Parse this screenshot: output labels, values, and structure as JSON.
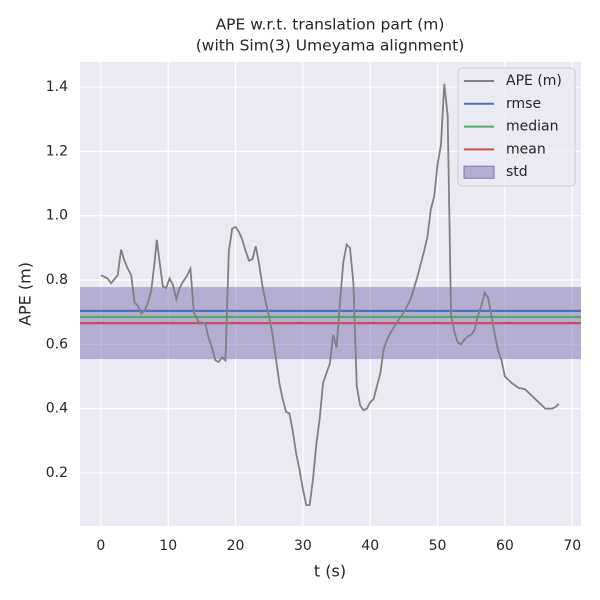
{
  "chart_data": {
    "type": "line",
    "title": [
      "APE w.r.t. translation part (m)",
      "(with Sim(3) Umeyama alignment)"
    ],
    "xlabel": "t (s)",
    "ylabel": "APE (m)",
    "xlim": [
      -3.1,
      71.3
    ],
    "ylim": [
      0.035,
      1.478
    ],
    "xticks": [
      0,
      10,
      20,
      30,
      40,
      50,
      60,
      70
    ],
    "yticks": [
      0.2,
      0.4,
      0.6,
      0.8,
      {
        "value": 1.0,
        "label": "1.0"
      },
      1.2,
      1.4
    ],
    "grid": true,
    "legend": "upper right",
    "series": [
      {
        "name": "APE (m)",
        "color": "#808080",
        "x": [
          0,
          1,
          1.5,
          2.5,
          3,
          3.5,
          4,
          4.5,
          5,
          5.5,
          6,
          6.5,
          7,
          7.5,
          8,
          8.3,
          8.7,
          9.2,
          9.7,
          10.2,
          10.7,
          11.2,
          11.7,
          12.2,
          12.7,
          13.3,
          13.8,
          14.5,
          15.5,
          16,
          16.5,
          17,
          17.5,
          18,
          18.5,
          19,
          19.5,
          20,
          20.5,
          21,
          21.5,
          22,
          22.5,
          23,
          23.5,
          24,
          24.5,
          25,
          25.5,
          26,
          26.5,
          27,
          27.5,
          28,
          28.5,
          29,
          29.5,
          30,
          30.5,
          31,
          31.5,
          32,
          32.5,
          33,
          33.5,
          34,
          34.5,
          35,
          35.5,
          36,
          36.5,
          37,
          37.5,
          38,
          38.5,
          39,
          39.5,
          40,
          40.5,
          41,
          41.5,
          42,
          42.5,
          43,
          44,
          45,
          46,
          47,
          48,
          48.5,
          49,
          49.5,
          50,
          50.5,
          51,
          51.5,
          52,
          52.5,
          53,
          53.5,
          54,
          54.5,
          55,
          55.5,
          56,
          56.5,
          57,
          57.5,
          58,
          58.5,
          59,
          59.5,
          60,
          61,
          62,
          63,
          64,
          65,
          66,
          67,
          67.5,
          68
        ],
        "values": [
          0.815,
          0.805,
          0.79,
          0.815,
          0.895,
          0.86,
          0.835,
          0.815,
          0.73,
          0.72,
          0.695,
          0.705,
          0.73,
          0.77,
          0.86,
          0.925,
          0.86,
          0.78,
          0.775,
          0.805,
          0.785,
          0.74,
          0.775,
          0.795,
          0.81,
          0.835,
          0.7,
          0.67,
          0.665,
          0.62,
          0.59,
          0.55,
          0.545,
          0.56,
          0.55,
          0.89,
          0.96,
          0.965,
          0.95,
          0.925,
          0.89,
          0.86,
          0.865,
          0.905,
          0.85,
          0.78,
          0.73,
          0.685,
          0.63,
          0.555,
          0.48,
          0.43,
          0.39,
          0.385,
          0.33,
          0.26,
          0.21,
          0.15,
          0.1,
          0.1,
          0.18,
          0.29,
          0.37,
          0.48,
          0.51,
          0.54,
          0.63,
          0.59,
          0.73,
          0.855,
          0.91,
          0.9,
          0.79,
          0.47,
          0.41,
          0.395,
          0.4,
          0.42,
          0.43,
          0.47,
          0.51,
          0.585,
          0.615,
          0.635,
          0.67,
          0.7,
          0.74,
          0.81,
          0.89,
          0.935,
          1.02,
          1.06,
          1.16,
          1.22,
          1.41,
          1.31,
          0.69,
          0.64,
          0.605,
          0.6,
          0.615,
          0.625,
          0.63,
          0.645,
          0.69,
          0.72,
          0.76,
          0.745,
          0.69,
          0.63,
          0.58,
          0.55,
          0.5,
          0.48,
          0.465,
          0.46,
          0.44,
          0.42,
          0.4,
          0.4,
          0.405,
          0.415
        ]
      },
      {
        "name": "rmse",
        "color": "#4c72b0",
        "value": 0.704
      },
      {
        "name": "median",
        "color": "#55a868",
        "value": 0.685
      },
      {
        "name": "mean",
        "color": "#c44e52",
        "value": 0.666
      },
      {
        "name": "std",
        "color": "#8172b2",
        "value": 0.112
      }
    ]
  }
}
